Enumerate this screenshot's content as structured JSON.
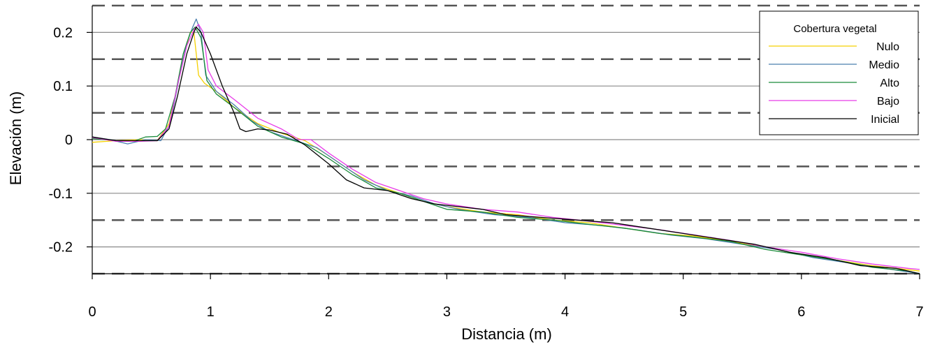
{
  "chart_data": {
    "type": "line",
    "xlabel": "Distancia (m)",
    "ylabel": "Elevación (m)",
    "xlim": [
      0,
      7
    ],
    "ylim": [
      -0.25,
      0.25
    ],
    "x_ticks": [
      "0",
      "1",
      "2",
      "3",
      "4",
      "5",
      "6",
      "7"
    ],
    "y_ticks": [
      "0.2",
      "0.1",
      "0",
      "-0.1",
      "-0.2"
    ],
    "y_tick_values": [
      0.2,
      0.1,
      0,
      -0.1,
      -0.2
    ],
    "solid_grid": [
      0.2,
      0.1,
      0,
      -0.1,
      -0.2
    ],
    "dashed_grid": [
      0.25,
      0.15,
      0.05,
      -0.05,
      -0.15,
      -0.25
    ],
    "legend": {
      "title": "Cobertura vegetal",
      "position": "top-right"
    },
    "series": [
      {
        "name": "Nulo",
        "color": "#f5d000",
        "points": [
          [
            0,
            -0.005
          ],
          [
            0.2,
            -0.002
          ],
          [
            0.4,
            0.0
          ],
          [
            0.55,
            -0.002
          ],
          [
            0.65,
            0.03
          ],
          [
            0.72,
            0.1
          ],
          [
            0.78,
            0.16
          ],
          [
            0.83,
            0.2
          ],
          [
            0.86,
            0.2
          ],
          [
            0.9,
            0.12
          ],
          [
            0.95,
            0.105
          ],
          [
            1.05,
            0.09
          ],
          [
            1.2,
            0.06
          ],
          [
            1.4,
            0.03
          ],
          [
            1.6,
            0.012
          ],
          [
            1.8,
            -0.002
          ],
          [
            2.0,
            -0.03
          ],
          [
            2.2,
            -0.06
          ],
          [
            2.4,
            -0.085
          ],
          [
            2.6,
            -0.1
          ],
          [
            2.8,
            -0.115
          ],
          [
            3.0,
            -0.125
          ],
          [
            3.3,
            -0.135
          ],
          [
            3.6,
            -0.14
          ],
          [
            3.9,
            -0.15
          ],
          [
            4.2,
            -0.155
          ],
          [
            4.5,
            -0.165
          ],
          [
            4.8,
            -0.175
          ],
          [
            5.1,
            -0.18
          ],
          [
            5.4,
            -0.19
          ],
          [
            5.7,
            -0.2
          ],
          [
            6.0,
            -0.215
          ],
          [
            6.3,
            -0.225
          ],
          [
            6.6,
            -0.235
          ],
          [
            6.8,
            -0.24
          ],
          [
            7.0,
            -0.245
          ]
        ]
      },
      {
        "name": "Medio",
        "color": "#4a7fae",
        "points": [
          [
            0,
            0.005
          ],
          [
            0.15,
            0.0
          ],
          [
            0.3,
            -0.008
          ],
          [
            0.45,
            0.0
          ],
          [
            0.58,
            -0.002
          ],
          [
            0.66,
            0.03
          ],
          [
            0.74,
            0.12
          ],
          [
            0.8,
            0.18
          ],
          [
            0.85,
            0.21
          ],
          [
            0.88,
            0.225
          ],
          [
            0.92,
            0.2
          ],
          [
            0.96,
            0.12
          ],
          [
            1.05,
            0.09
          ],
          [
            1.2,
            0.065
          ],
          [
            1.35,
            0.035
          ],
          [
            1.5,
            0.015
          ],
          [
            1.7,
            0.0
          ],
          [
            1.9,
            -0.015
          ],
          [
            2.1,
            -0.045
          ],
          [
            2.3,
            -0.075
          ],
          [
            2.5,
            -0.095
          ],
          [
            2.7,
            -0.105
          ],
          [
            2.9,
            -0.12
          ],
          [
            3.1,
            -0.13
          ],
          [
            3.4,
            -0.14
          ],
          [
            3.7,
            -0.145
          ],
          [
            4.0,
            -0.155
          ],
          [
            4.3,
            -0.16
          ],
          [
            4.6,
            -0.168
          ],
          [
            4.9,
            -0.178
          ],
          [
            5.2,
            -0.185
          ],
          [
            5.5,
            -0.195
          ],
          [
            5.8,
            -0.205
          ],
          [
            6.1,
            -0.22
          ],
          [
            6.4,
            -0.23
          ],
          [
            6.7,
            -0.24
          ],
          [
            7.0,
            -0.25
          ]
        ]
      },
      {
        "name": "Alto",
        "color": "#1a8a3a",
        "points": [
          [
            0,
            0.002
          ],
          [
            0.2,
            -0.002
          ],
          [
            0.35,
            -0.003
          ],
          [
            0.45,
            0.005
          ],
          [
            0.55,
            0.006
          ],
          [
            0.62,
            0.02
          ],
          [
            0.7,
            0.08
          ],
          [
            0.77,
            0.16
          ],
          [
            0.83,
            0.2
          ],
          [
            0.87,
            0.21
          ],
          [
            0.92,
            0.19
          ],
          [
            0.97,
            0.11
          ],
          [
            1.05,
            0.085
          ],
          [
            1.2,
            0.06
          ],
          [
            1.4,
            0.025
          ],
          [
            1.6,
            0.005
          ],
          [
            1.8,
            -0.008
          ],
          [
            2.0,
            -0.035
          ],
          [
            2.2,
            -0.065
          ],
          [
            2.4,
            -0.09
          ],
          [
            2.6,
            -0.1
          ],
          [
            2.8,
            -0.115
          ],
          [
            3.0,
            -0.13
          ],
          [
            3.3,
            -0.135
          ],
          [
            3.6,
            -0.145
          ],
          [
            3.9,
            -0.15
          ],
          [
            4.2,
            -0.158
          ],
          [
            4.5,
            -0.165
          ],
          [
            4.8,
            -0.175
          ],
          [
            5.1,
            -0.182
          ],
          [
            5.4,
            -0.19
          ],
          [
            5.7,
            -0.205
          ],
          [
            6.0,
            -0.215
          ],
          [
            6.3,
            -0.225
          ],
          [
            6.6,
            -0.238
          ],
          [
            6.9,
            -0.245
          ],
          [
            7.0,
            -0.25
          ]
        ]
      },
      {
        "name": "Bajo",
        "color": "#e83ce8",
        "points": [
          [
            0,
            0.004
          ],
          [
            0.2,
            -0.003
          ],
          [
            0.4,
            -0.003
          ],
          [
            0.55,
            -0.002
          ],
          [
            0.65,
            0.025
          ],
          [
            0.72,
            0.1
          ],
          [
            0.8,
            0.175
          ],
          [
            0.86,
            0.205
          ],
          [
            0.9,
            0.215
          ],
          [
            0.94,
            0.2
          ],
          [
            0.98,
            0.13
          ],
          [
            1.05,
            0.1
          ],
          [
            1.2,
            0.075
          ],
          [
            1.4,
            0.04
          ],
          [
            1.6,
            0.02
          ],
          [
            1.75,
            0.0
          ],
          [
            1.85,
            0.0
          ],
          [
            2.0,
            -0.025
          ],
          [
            2.2,
            -0.055
          ],
          [
            2.4,
            -0.08
          ],
          [
            2.6,
            -0.095
          ],
          [
            2.8,
            -0.11
          ],
          [
            3.0,
            -0.12
          ],
          [
            3.3,
            -0.13
          ],
          [
            3.6,
            -0.135
          ],
          [
            3.9,
            -0.145
          ],
          [
            4.2,
            -0.152
          ],
          [
            4.5,
            -0.16
          ],
          [
            4.8,
            -0.168
          ],
          [
            5.1,
            -0.178
          ],
          [
            5.4,
            -0.188
          ],
          [
            5.7,
            -0.2
          ],
          [
            6.0,
            -0.21
          ],
          [
            6.3,
            -0.222
          ],
          [
            6.6,
            -0.232
          ],
          [
            6.9,
            -0.24
          ],
          [
            7.0,
            -0.242
          ]
        ]
      },
      {
        "name": "Inicial",
        "color": "#000000",
        "points": [
          [
            0,
            0.005
          ],
          [
            0.2,
            -0.002
          ],
          [
            0.4,
            -0.002
          ],
          [
            0.55,
            -0.002
          ],
          [
            0.65,
            0.02
          ],
          [
            0.72,
            0.08
          ],
          [
            0.8,
            0.16
          ],
          [
            0.86,
            0.2
          ],
          [
            0.88,
            0.21
          ],
          [
            0.92,
            0.2
          ],
          [
            1.0,
            0.16
          ],
          [
            1.1,
            0.1
          ],
          [
            1.2,
            0.05
          ],
          [
            1.25,
            0.02
          ],
          [
            1.3,
            0.015
          ],
          [
            1.4,
            0.02
          ],
          [
            1.5,
            0.018
          ],
          [
            1.65,
            0.01
          ],
          [
            1.8,
            -0.01
          ],
          [
            2.0,
            -0.045
          ],
          [
            2.15,
            -0.075
          ],
          [
            2.3,
            -0.09
          ],
          [
            2.5,
            -0.095
          ],
          [
            2.7,
            -0.11
          ],
          [
            2.9,
            -0.12
          ],
          [
            3.1,
            -0.125
          ],
          [
            3.3,
            -0.13
          ],
          [
            3.5,
            -0.14
          ],
          [
            3.8,
            -0.145
          ],
          [
            4.1,
            -0.15
          ],
          [
            4.4,
            -0.155
          ],
          [
            4.7,
            -0.165
          ],
          [
            5.0,
            -0.175
          ],
          [
            5.3,
            -0.185
          ],
          [
            5.6,
            -0.195
          ],
          [
            5.9,
            -0.21
          ],
          [
            6.2,
            -0.22
          ],
          [
            6.5,
            -0.235
          ],
          [
            6.8,
            -0.24
          ],
          [
            7.0,
            -0.25
          ]
        ]
      }
    ]
  }
}
